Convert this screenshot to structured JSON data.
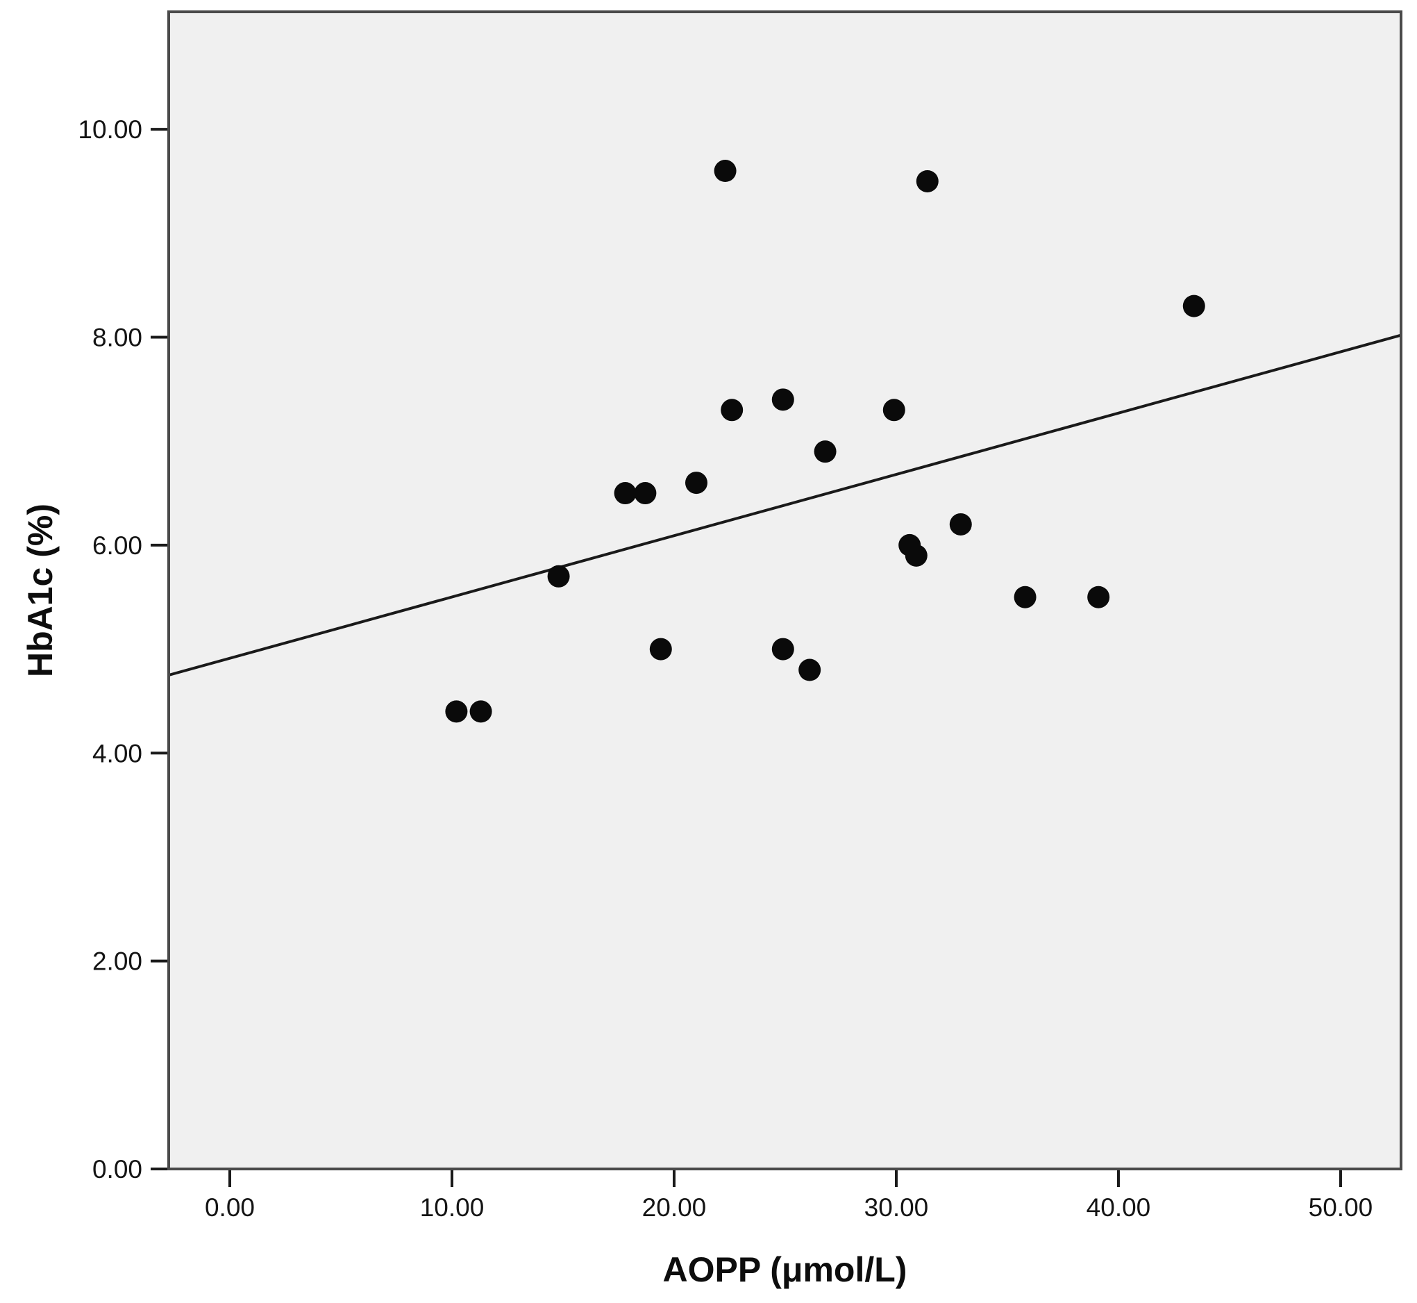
{
  "figure": {
    "plot_background": "#f0f0f0",
    "outer_background": "#ffffff",
    "frame_color": "#4a4a4a",
    "tick_color": "#1a1a1a",
    "point_color": "#0a0a0a",
    "line_color": "#1a1a1a"
  },
  "chart_data": {
    "type": "scatter",
    "title": "",
    "xlabel": "AOPP (μmol/L)",
    "ylabel": "HbA1c (%)",
    "grid": false,
    "legend": null,
    "xlim": [
      -2.75,
      52.72
    ],
    "ylim": [
      0,
      11.13
    ],
    "x_tick_labels": [
      "0.00",
      "10.00",
      "20.00",
      "30.00",
      "40.00",
      "50.00"
    ],
    "x_tick_values": [
      0,
      10,
      20,
      30,
      40,
      50
    ],
    "y_tick_labels": [
      "0.00",
      "2.00",
      "4.00",
      "6.00",
      "8.00",
      "10.00"
    ],
    "y_tick_values": [
      0,
      2,
      4,
      6,
      8,
      10
    ],
    "points": [
      [
        10.2,
        4.4
      ],
      [
        11.3,
        4.4
      ],
      [
        14.8,
        5.7
      ],
      [
        17.8,
        6.5
      ],
      [
        18.7,
        6.5
      ],
      [
        19.4,
        5.0
      ],
      [
        21.0,
        6.6
      ],
      [
        22.3,
        9.6
      ],
      [
        22.6,
        7.3
      ],
      [
        24.9,
        7.4
      ],
      [
        24.9,
        5.0
      ],
      [
        26.1,
        4.8
      ],
      [
        26.8,
        6.9
      ],
      [
        29.9,
        7.3
      ],
      [
        30.6,
        6.0
      ],
      [
        30.9,
        5.9
      ],
      [
        31.4,
        9.5
      ],
      [
        32.9,
        6.2
      ],
      [
        35.8,
        5.5
      ],
      [
        39.1,
        5.5
      ],
      [
        43.4,
        8.3
      ]
    ],
    "fit_line": {
      "x1": -2.75,
      "y1": 4.75,
      "x2": 52.72,
      "y2": 8.02
    }
  }
}
